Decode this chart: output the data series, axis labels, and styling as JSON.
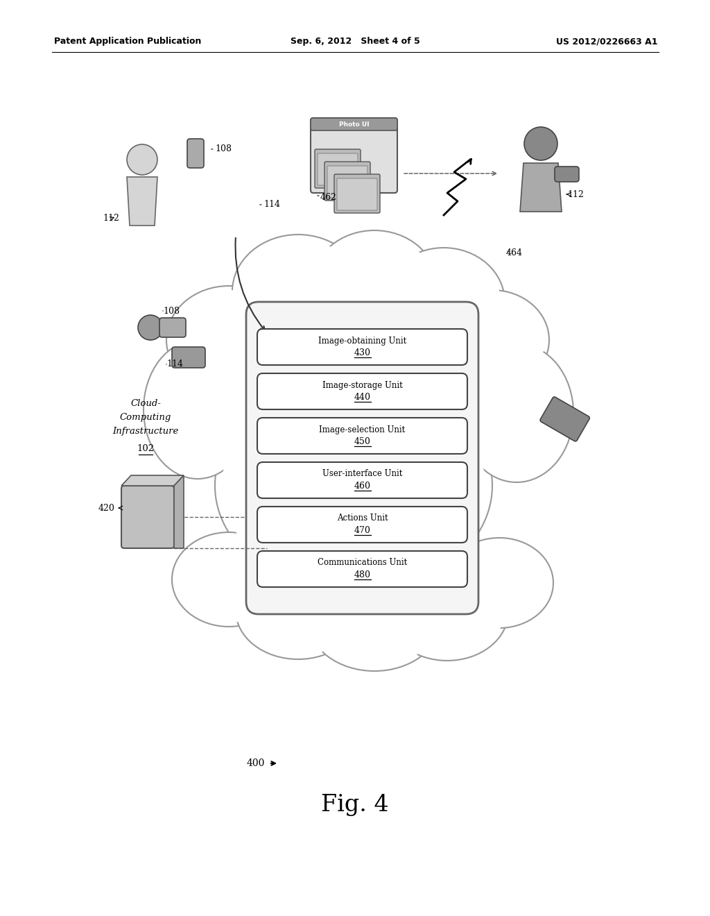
{
  "header_left": "Patent Application Publication",
  "header_center": "Sep. 6, 2012   Sheet 4 of 5",
  "header_right": "US 2012/0226663 A1",
  "fig_label": "Fig. 4",
  "fig_number_label": "400",
  "boxes": [
    {
      "label": "Image-Obtaining Unit",
      "number": "430"
    },
    {
      "label": "Image-Storage Unit",
      "number": "440"
    },
    {
      "label": "Image-Selection Unit",
      "number": "450"
    },
    {
      "label": "User-Interface Unit",
      "number": "460"
    },
    {
      "label": "Actions Unit",
      "number": "470"
    },
    {
      "label": "Communications Unit",
      "number": "480"
    }
  ],
  "cloud_text_line1": "Cloud-",
  "cloud_text_line2": "Computing",
  "cloud_text_line3": "Infrastructure",
  "cloud_text_line4": "102",
  "bg_color": "#ffffff"
}
